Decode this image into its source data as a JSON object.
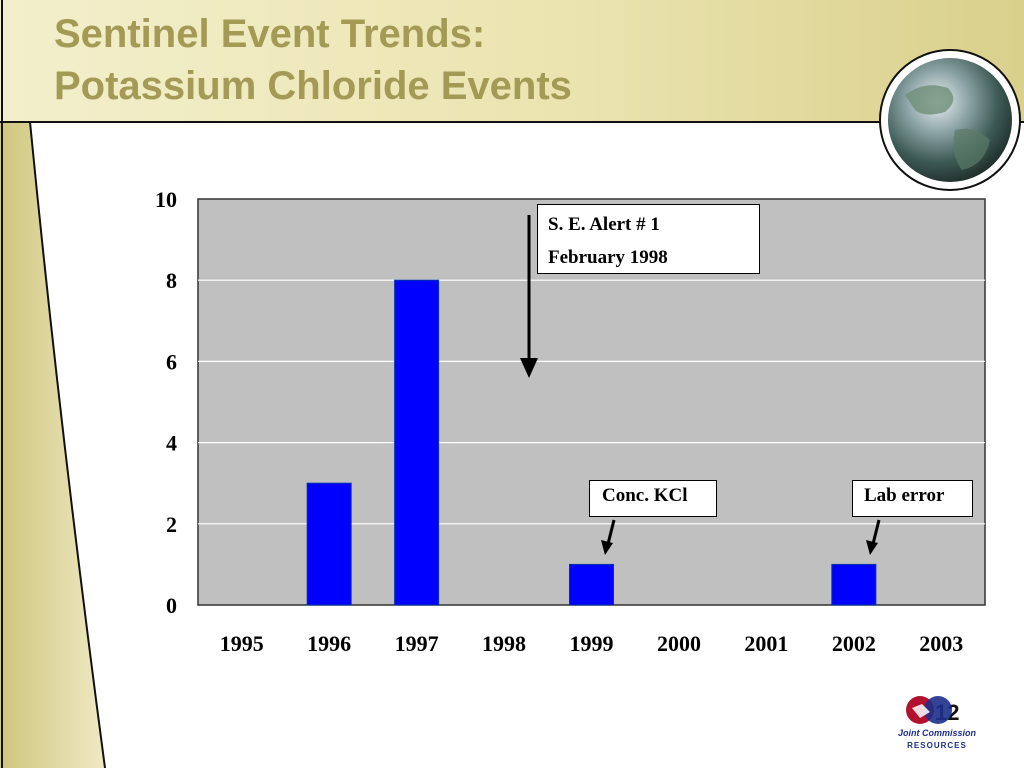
{
  "slide": {
    "title_lines": [
      "Sentinel Event Trends:",
      "Potassium Chloride Events"
    ],
    "page_number": "12",
    "logo": {
      "icon": "joint-commission-resources-logo",
      "text_line1": "Joint Commission",
      "text_line2": "RESOURCES"
    },
    "globe_icon": "globe-icon",
    "colors": {
      "title": "#a29a55",
      "accent_gold": "#c9c07a",
      "bar": "#0000ff",
      "plot_bg": "#c0c0c0"
    }
  },
  "chart_data": {
    "type": "bar",
    "categories": [
      "1995",
      "1996",
      "1997",
      "1998",
      "1999",
      "2000",
      "2001",
      "2002",
      "2003"
    ],
    "values": [
      0,
      3,
      8,
      0,
      1,
      0,
      0,
      1,
      0
    ],
    "ylim": [
      0,
      10
    ],
    "yticks": [
      "0",
      "2",
      "4",
      "6",
      "8",
      "10"
    ],
    "grid": true,
    "annotations": [
      {
        "lines": [
          "S. E. Alert  # 1",
          "February 1998"
        ],
        "points_to": "1998"
      },
      {
        "lines": [
          "Conc. KCl"
        ],
        "points_to": "1999"
      },
      {
        "lines": [
          "Lab error"
        ],
        "points_to": "2002"
      }
    ]
  }
}
